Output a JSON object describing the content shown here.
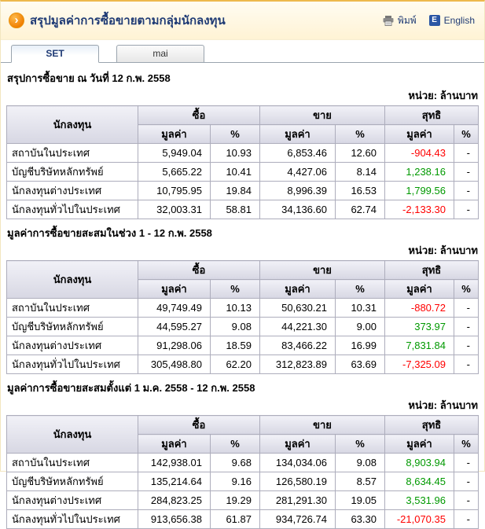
{
  "header": {
    "title": "สรุปมูลค่าการซื้อขายตามกลุ่มนักลงทุน",
    "bullet_glyph": "›",
    "print_label": "พิมพ์",
    "english_icon": "E",
    "english_label": "English"
  },
  "tabs": [
    {
      "label": "SET"
    },
    {
      "label": "mai"
    }
  ],
  "labels": {
    "unit": "หน่วย: ล้านบาท",
    "investor": "นักลงทุน",
    "buy": "ซื้อ",
    "sell": "ขาย",
    "net": "สุทธิ",
    "value": "มูลค่า",
    "percent": "%"
  },
  "colors": {
    "negative": "#ff0000",
    "positive": "#009900",
    "accent-navy": "#1f3b75"
  },
  "sections": [
    {
      "title": "สรุปการซื้อขาย ณ วันที่ 12 ก.พ. 2558",
      "rows": [
        {
          "investor": "สถาบันในประเทศ",
          "buy_value": "5,949.04",
          "buy_pct": "10.93",
          "sell_value": "6,853.46",
          "sell_pct": "12.60",
          "net_value": "-904.43",
          "net_pct": "-"
        },
        {
          "investor": "บัญชีบริษัทหลักทรัพย์",
          "buy_value": "5,665.22",
          "buy_pct": "10.41",
          "sell_value": "4,427.06",
          "sell_pct": "8.14",
          "net_value": "1,238.16",
          "net_pct": "-"
        },
        {
          "investor": "นักลงทุนต่างประเทศ",
          "buy_value": "10,795.95",
          "buy_pct": "19.84",
          "sell_value": "8,996.39",
          "sell_pct": "16.53",
          "net_value": "1,799.56",
          "net_pct": "-"
        },
        {
          "investor": "นักลงทุนทั่วไปในประเทศ",
          "buy_value": "32,003.31",
          "buy_pct": "58.81",
          "sell_value": "34,136.60",
          "sell_pct": "62.74",
          "net_value": "-2,133.30",
          "net_pct": "-"
        }
      ]
    },
    {
      "title": "มูลค่าการซื้อขายสะสมในช่วง 1 - 12 ก.พ. 2558",
      "rows": [
        {
          "investor": "สถาบันในประเทศ",
          "buy_value": "49,749.49",
          "buy_pct": "10.13",
          "sell_value": "50,630.21",
          "sell_pct": "10.31",
          "net_value": "-880.72",
          "net_pct": "-"
        },
        {
          "investor": "บัญชีบริษัทหลักทรัพย์",
          "buy_value": "44,595.27",
          "buy_pct": "9.08",
          "sell_value": "44,221.30",
          "sell_pct": "9.00",
          "net_value": "373.97",
          "net_pct": "-"
        },
        {
          "investor": "นักลงทุนต่างประเทศ",
          "buy_value": "91,298.06",
          "buy_pct": "18.59",
          "sell_value": "83,466.22",
          "sell_pct": "16.99",
          "net_value": "7,831.84",
          "net_pct": "-"
        },
        {
          "investor": "นักลงทุนทั่วไปในประเทศ",
          "buy_value": "305,498.80",
          "buy_pct": "62.20",
          "sell_value": "312,823.89",
          "sell_pct": "63.69",
          "net_value": "-7,325.09",
          "net_pct": "-"
        }
      ]
    },
    {
      "title": "มูลค่าการซื้อขายสะสมตั้งแต่ 1 ม.ค. 2558 - 12 ก.พ. 2558",
      "rows": [
        {
          "investor": "สถาบันในประเทศ",
          "buy_value": "142,938.01",
          "buy_pct": "9.68",
          "sell_value": "134,034.06",
          "sell_pct": "9.08",
          "net_value": "8,903.94",
          "net_pct": "-"
        },
        {
          "investor": "บัญชีบริษัทหลักทรัพย์",
          "buy_value": "135,214.64",
          "buy_pct": "9.16",
          "sell_value": "126,580.19",
          "sell_pct": "8.57",
          "net_value": "8,634.45",
          "net_pct": "-"
        },
        {
          "investor": "นักลงทุนต่างประเทศ",
          "buy_value": "284,823.25",
          "buy_pct": "19.29",
          "sell_value": "281,291.30",
          "sell_pct": "19.05",
          "net_value": "3,531.96",
          "net_pct": "-"
        },
        {
          "investor": "นักลงทุนทั่วไปในประเทศ",
          "buy_value": "913,656.38",
          "buy_pct": "61.87",
          "sell_value": "934,726.74",
          "sell_pct": "63.30",
          "net_value": "-21,070.35",
          "net_pct": "-"
        }
      ]
    }
  ]
}
